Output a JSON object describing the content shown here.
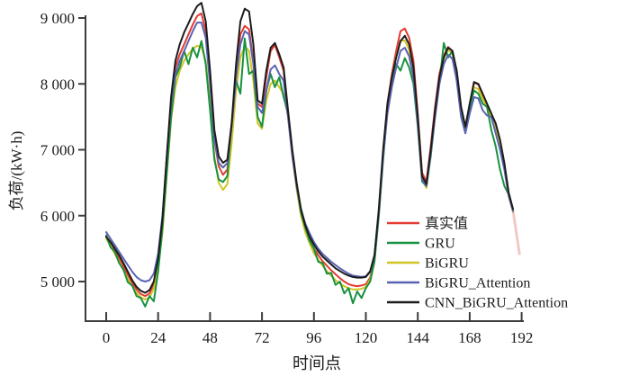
{
  "figure": {
    "background": "#ffffff",
    "axis_color": "#3d3d3d",
    "text_color": "#1c1c1c"
  },
  "axes": {
    "x": {
      "label": "时间点",
      "ticks": [
        0,
        24,
        48,
        72,
        96,
        120,
        144,
        168,
        192
      ],
      "lim": [
        0,
        192
      ]
    },
    "y": {
      "label": "负荷/(kW·h)",
      "ticks": [
        5000,
        6000,
        7000,
        8000,
        9000
      ],
      "tick_labels": [
        "5 000",
        "6 000",
        "7 000",
        "8 000",
        "9 000"
      ],
      "lim": [
        4400,
        9270
      ]
    }
  },
  "chart_data": {
    "type": "line",
    "title": "",
    "xlabel": "时间点",
    "ylabel": "负荷/(kW·h)",
    "xlim": [
      0,
      192
    ],
    "ylim": [
      4400,
      9270
    ],
    "grid": false,
    "legend_position": "bottom-right-inside",
    "x_start": 0,
    "x_step": 2,
    "series": [
      {
        "name": "真实值",
        "color": "#e23b33",
        "values": [
          5680,
          5580,
          5470,
          5360,
          5230,
          5100,
          4980,
          4880,
          4810,
          4780,
          4820,
          4960,
          5300,
          5900,
          6850,
          7750,
          8250,
          8450,
          8600,
          8750,
          8900,
          9030,
          9070,
          8800,
          8050,
          7150,
          6750,
          6620,
          6700,
          7300,
          8150,
          8750,
          8880,
          8830,
          8350,
          7700,
          7650,
          8100,
          8500,
          8590,
          8400,
          8200,
          7550,
          6950,
          6450,
          6050,
          5800,
          5630,
          5500,
          5400,
          5310,
          5240,
          5170,
          5110,
          5050,
          5000,
          4960,
          4940,
          4930,
          4940,
          4960,
          5060,
          5350,
          6050,
          6950,
          7700,
          8150,
          8500,
          8800,
          8840,
          8700,
          8350,
          7550,
          6650,
          6520,
          7050,
          7650,
          8150,
          8430,
          8560,
          8500,
          8180,
          7650,
          7340,
          7680,
          8020,
          7990,
          7840,
          7690,
          7540,
          7380,
          7120,
          6760,
          6320,
          6080
        ]
      },
      {
        "name": "GRU",
        "color": "#18923f",
        "values": [
          5700,
          5520,
          5450,
          5280,
          5180,
          4990,
          4940,
          4780,
          4750,
          4620,
          4780,
          4700,
          5150,
          5800,
          6650,
          7500,
          8100,
          8250,
          8500,
          8300,
          8550,
          8400,
          8650,
          8300,
          7600,
          6850,
          6550,
          6510,
          6600,
          7400,
          8050,
          7850,
          8690,
          8150,
          8200,
          7500,
          7350,
          7900,
          8150,
          7950,
          8100,
          7800,
          7550,
          6950,
          6450,
          6050,
          5820,
          5620,
          5500,
          5300,
          5280,
          5120,
          5130,
          4950,
          5000,
          4820,
          4900,
          4670,
          4850,
          4750,
          4900,
          5000,
          5300,
          6000,
          6850,
          7600,
          8000,
          8300,
          8200,
          8390,
          8250,
          8000,
          7350,
          6520,
          6450,
          6900,
          7500,
          8000,
          8620,
          8400,
          8500,
          8050,
          7550,
          7300,
          7650,
          7900,
          7850,
          7700,
          7650,
          7300,
          7050,
          6700,
          6450,
          6320,
          6090
        ]
      },
      {
        "name": "BiGRU",
        "color": "#d2c425",
        "values": [
          5650,
          5540,
          5420,
          5300,
          5170,
          5040,
          4930,
          4830,
          4760,
          4730,
          4760,
          4890,
          5200,
          5750,
          6600,
          7450,
          7950,
          8200,
          8350,
          8450,
          8530,
          8580,
          8560,
          8350,
          7700,
          6900,
          6500,
          6390,
          6480,
          7100,
          7900,
          8400,
          8570,
          8500,
          8050,
          7400,
          7320,
          7750,
          8000,
          8050,
          7950,
          7850,
          7500,
          6900,
          6400,
          6000,
          5750,
          5580,
          5430,
          5330,
          5240,
          5160,
          5090,
          5020,
          4970,
          4930,
          4900,
          4880,
          4880,
          4890,
          4920,
          5030,
          5320,
          6000,
          6900,
          7650,
          8100,
          8420,
          8650,
          8660,
          8520,
          8180,
          7450,
          6550,
          6420,
          6950,
          7550,
          8080,
          8380,
          8520,
          8450,
          8120,
          7600,
          7300,
          7620,
          7950,
          7920,
          7780,
          7640,
          7490,
          7330,
          7080,
          6730,
          6300,
          6060
        ]
      },
      {
        "name": "BiGRU_Attention",
        "color": "#5a63b2",
        "values": [
          5750,
          5650,
          5550,
          5450,
          5350,
          5250,
          5150,
          5070,
          5020,
          5000,
          5020,
          5120,
          5420,
          6000,
          6900,
          7700,
          8150,
          8350,
          8500,
          8650,
          8800,
          8930,
          8930,
          8700,
          8000,
          7150,
          6800,
          6730,
          6800,
          7350,
          8100,
          8600,
          8800,
          8750,
          8300,
          7650,
          7560,
          7900,
          8220,
          8280,
          8150,
          8050,
          7500,
          6900,
          6450,
          6100,
          5880,
          5730,
          5600,
          5500,
          5420,
          5360,
          5300,
          5250,
          5200,
          5160,
          5120,
          5090,
          5080,
          5070,
          5080,
          5160,
          5400,
          6050,
          6900,
          7550,
          7950,
          8250,
          8500,
          8550,
          8420,
          8100,
          7400,
          6550,
          6450,
          6950,
          7500,
          8000,
          8300,
          8440,
          8380,
          8050,
          7500,
          7250,
          7550,
          7800,
          7780,
          7600,
          7520,
          7500,
          7250,
          7000,
          6700,
          6300,
          6070
        ]
      },
      {
        "name": "CNN_BiGRU_Attention",
        "color": "#1c1c1c",
        "values": [
          5680,
          5600,
          5500,
          5400,
          5280,
          5150,
          5020,
          4920,
          4860,
          4830,
          4870,
          5000,
          5350,
          5950,
          6900,
          7800,
          8350,
          8600,
          8780,
          8920,
          9060,
          9180,
          9230,
          8950,
          8200,
          7300,
          6900,
          6800,
          6850,
          7400,
          8300,
          8950,
          9140,
          9100,
          8600,
          7750,
          7700,
          8200,
          8550,
          8620,
          8450,
          8250,
          7600,
          7000,
          6500,
          6100,
          5850,
          5680,
          5560,
          5460,
          5380,
          5320,
          5260,
          5200,
          5160,
          5120,
          5090,
          5070,
          5060,
          5060,
          5070,
          5150,
          5400,
          6100,
          7000,
          7700,
          8100,
          8400,
          8650,
          8730,
          8600,
          8250,
          7500,
          6600,
          6480,
          7000,
          7600,
          8100,
          8400,
          8550,
          8500,
          8200,
          7650,
          7350,
          7700,
          8030,
          8000,
          7850,
          7700,
          7550,
          7400,
          7150,
          6800,
          6350,
          6100
        ]
      }
    ],
    "faded_tail": {
      "color": "#f0c9c5",
      "points": [
        [
          188,
          6080
        ],
        [
          191,
          5420
        ]
      ]
    }
  },
  "legend": {
    "entries": [
      "真实值",
      "GRU",
      "BiGRU",
      "BiGRU_Attention",
      "CNN_BiGRU_Attention"
    ]
  }
}
